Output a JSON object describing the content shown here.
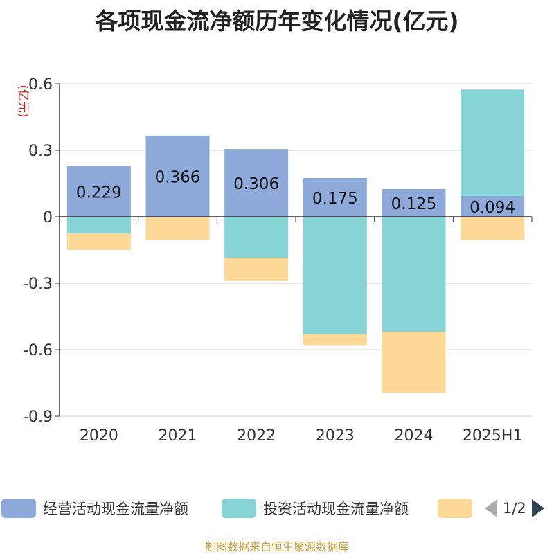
{
  "title": "各项现金流净额历年变化情况(亿元)",
  "source": "制图数据来自恒生聚源数据库",
  "pager": {
    "text": "1/2"
  },
  "legend": [
    {
      "name": "经营活动现金流量净额",
      "color": "#8eaadb"
    },
    {
      "name": "投资活动现金流量净额",
      "color": "#87d4d6"
    },
    {
      "name": "",
      "color": "#fed897"
    }
  ],
  "chart_data": {
    "type": "bar",
    "stacked": true,
    "ylabel": "(亿元)",
    "ylim": [
      -0.9,
      0.6
    ],
    "yticks": [
      0.6,
      0.3,
      0,
      -0.3,
      -0.6,
      -0.9
    ],
    "ytick_labels": [
      "0.6",
      "0.3",
      "0",
      "-0.3",
      "-0.6",
      "-0.9"
    ],
    "categories": [
      "2020",
      "2021",
      "2022",
      "2023",
      "2024",
      "2025H1"
    ],
    "grid": true,
    "legend_position": "bottom",
    "series": [
      {
        "name": "经营活动现金流量净额",
        "color": "#8eaadb",
        "values": [
          0.229,
          0.366,
          0.306,
          0.175,
          0.125,
          0.094
        ],
        "labels": [
          "0.229",
          "0.366",
          "0.306",
          "0.175",
          "0.125",
          "0.094"
        ]
      },
      {
        "name": "投资活动现金流量净额",
        "color": "#87d4d6",
        "values": [
          -0.075,
          0,
          -0.185,
          -0.53,
          -0.52,
          0.48
        ]
      },
      {
        "name": "",
        "color": "#fed897",
        "values": [
          -0.075,
          -0.105,
          -0.105,
          -0.05,
          -0.275,
          -0.105
        ]
      }
    ]
  }
}
